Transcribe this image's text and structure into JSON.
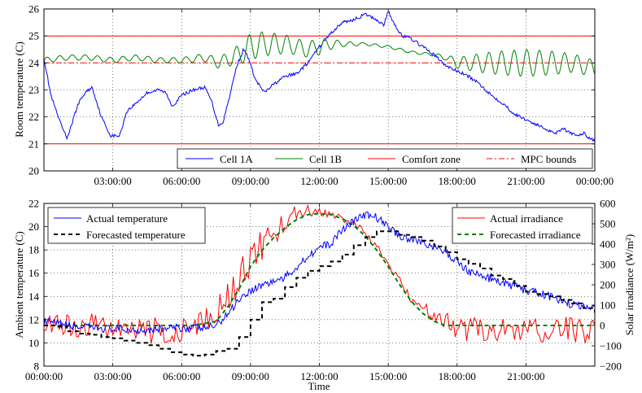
{
  "chart_data": [
    {
      "type": "line",
      "title": "",
      "xlabel": "",
      "ylabel": "Room temperature (C)",
      "xlim": [
        0,
        24
      ],
      "ylim": [
        20,
        26
      ],
      "grid": true,
      "legend_placement": "bottom-right",
      "x_tick_values": [
        3,
        6,
        9,
        12,
        15,
        18,
        21,
        24
      ],
      "x_tick_labels": [
        "03:00:00",
        "06:00:00",
        "09:00:00",
        "12:00:00",
        "15:00:00",
        "18:00:00",
        "21:00:00",
        "00:00:00"
      ],
      "y_tick_values": [
        20,
        21,
        22,
        23,
        24,
        25,
        26
      ],
      "y_tick_labels": [
        "20",
        "21",
        "22",
        "23",
        "24",
        "25",
        "26"
      ],
      "x_units": "hours",
      "series": [
        {
          "name": "Cell 1A",
          "color": "#0000ff",
          "style": "solid",
          "x": [
            0,
            0.3,
            0.7,
            1.0,
            1.2,
            1.5,
            1.8,
            2.1,
            2.5,
            2.9,
            3.3,
            3.6,
            4.0,
            4.5,
            5.0,
            5.3,
            5.6,
            6.0,
            6.5,
            7.0,
            7.3,
            7.6,
            7.8,
            8.1,
            8.4,
            8.7,
            8.9,
            9.2,
            9.6,
            10.0,
            10.5,
            11.0,
            11.5,
            12.0,
            12.5,
            13.0,
            13.5,
            14.0,
            14.5,
            14.8,
            15.0,
            15.3,
            15.6,
            16.0,
            16.5,
            17.0,
            17.5,
            18.0,
            18.5,
            19.0,
            19.5,
            20.0,
            20.5,
            21.0,
            21.5,
            22.0,
            22.3,
            22.6,
            22.9,
            23.2,
            23.5,
            23.8,
            24.0
          ],
          "y": [
            24.2,
            22.8,
            21.8,
            21.2,
            21.7,
            22.5,
            22.9,
            23.1,
            22.0,
            21.3,
            21.3,
            22.2,
            22.5,
            22.9,
            23.0,
            22.9,
            22.4,
            22.8,
            23.0,
            23.1,
            22.6,
            21.7,
            21.8,
            22.8,
            23.9,
            24.5,
            24.2,
            23.4,
            22.9,
            23.2,
            23.5,
            23.6,
            24.0,
            24.6,
            25.1,
            25.5,
            25.6,
            25.8,
            25.6,
            25.4,
            25.9,
            25.4,
            25.0,
            24.9,
            24.6,
            24.3,
            23.9,
            23.7,
            23.5,
            23.2,
            22.8,
            22.5,
            22.1,
            21.9,
            21.7,
            21.5,
            21.4,
            21.6,
            21.4,
            21.3,
            21.4,
            21.2,
            21.1
          ]
        },
        {
          "name": "Cell 1B",
          "color": "#008000",
          "style": "solid",
          "x": [
            0,
            1,
            2,
            3,
            4,
            5,
            6,
            7,
            7.6,
            8.2,
            8.7,
            9.0,
            9.5,
            10.0,
            10.5,
            11.0,
            11.5,
            12.0,
            12.5,
            13.0,
            14.0,
            15.0,
            16.0,
            17.0,
            17.5,
            18.0,
            19.0,
            20.0,
            21.0,
            22.0,
            23.0,
            24.0
          ],
          "y": [
            24.1,
            24.2,
            24.2,
            24.1,
            24.2,
            24.1,
            24.1,
            24.2,
            24.0,
            24.2,
            24.4,
            24.6,
            24.7,
            24.7,
            24.7,
            24.6,
            24.5,
            24.6,
            24.7,
            24.7,
            24.7,
            24.6,
            24.4,
            24.3,
            24.2,
            24.0,
            24.0,
            24.0,
            24.0,
            24.0,
            24.0,
            23.8
          ],
          "oscillation_amplitude": [
            0.1,
            0.1,
            0.1,
            0.1,
            0.1,
            0.1,
            0.1,
            0.15,
            0.2,
            0.3,
            0.4,
            0.5,
            0.45,
            0.4,
            0.35,
            0.3,
            0.3,
            0.3,
            0.2,
            0.1,
            0.05,
            0.05,
            0.05,
            0.05,
            0.1,
            0.2,
            0.35,
            0.45,
            0.5,
            0.45,
            0.35,
            0.3
          ]
        },
        {
          "name": "Comfort zone",
          "color": "#ff0000",
          "style": "solid",
          "x": [
            0,
            24
          ],
          "y": [
            25,
            25
          ],
          "y_lower": [
            21,
            21
          ]
        },
        {
          "name": "MPC bounds",
          "color": "#ff0000",
          "style": "dashdot",
          "x": [
            0,
            24
          ],
          "y": [
            24,
            24
          ]
        }
      ]
    },
    {
      "type": "line",
      "title": "",
      "xlabel": "Time",
      "ylabel": "Ambient temperature (C)",
      "y2label": "Solar irradiance (W/m²)",
      "xlim": [
        0,
        24
      ],
      "ylim": [
        8,
        22
      ],
      "y2lim": [
        -200,
        600
      ],
      "grid": true,
      "legend_placement": "top-left and top-right",
      "x_tick_values": [
        0,
        3,
        6,
        9,
        12,
        15,
        18,
        21
      ],
      "x_tick_labels": [
        "00:00:00",
        "03:00:00",
        "06:00:00",
        "09:00:00",
        "12:00:00",
        "15:00:00",
        "18:00:00",
        "21:00:00"
      ],
      "y_tick_values": [
        8,
        10,
        12,
        14,
        16,
        18,
        20,
        22
      ],
      "y_tick_labels": [
        "8",
        "10",
        "12",
        "14",
        "16",
        "18",
        "20",
        "22"
      ],
      "y2_tick_values": [
        -200,
        -100,
        0,
        100,
        200,
        300,
        400,
        500,
        600
      ],
      "y2_tick_labels": [
        "−200",
        "−100",
        "0",
        "100",
        "200",
        "300",
        "400",
        "500",
        "600"
      ],
      "x_units": "hours",
      "series": [
        {
          "name": "Actual temperature",
          "axis": "left",
          "color": "#0000ff",
          "style": "solid",
          "x": [
            0,
            1,
            2,
            3,
            4,
            5,
            6,
            7,
            7.5,
            8,
            8.5,
            9,
            9.5,
            10,
            10.5,
            11,
            11.5,
            12,
            12.5,
            13,
            13.5,
            14,
            14.5,
            15,
            15.5,
            16,
            16.5,
            17,
            17.5,
            18,
            18.5,
            19,
            19.5,
            20,
            20.5,
            21,
            21.5,
            22,
            22.5,
            23,
            23.5,
            24
          ],
          "y": [
            11.8,
            11.5,
            11.3,
            11.2,
            11.1,
            11.2,
            11.3,
            11.3,
            11.5,
            12.5,
            13.8,
            14.5,
            15.0,
            15.3,
            15.6,
            16.5,
            17.5,
            18.2,
            18.5,
            19.8,
            20.5,
            21.0,
            20.8,
            20.0,
            19.2,
            18.9,
            18.7,
            18.2,
            17.8,
            17.0,
            16.2,
            15.8,
            15.5,
            15.1,
            14.9,
            14.5,
            14.3,
            14.0,
            13.7,
            13.3,
            13.1,
            13.2
          ]
        },
        {
          "name": "Forecasted temperature",
          "axis": "left",
          "color": "#000000",
          "style": "dashed",
          "x": [
            0,
            0.5,
            1,
            1.5,
            2,
            2.5,
            3,
            3.5,
            4,
            4.5,
            5,
            5.5,
            6,
            6.5,
            7,
            7.5,
            8,
            8.5,
            9,
            9.5,
            10,
            10.5,
            11,
            11.5,
            12,
            12.5,
            13,
            13.5,
            14,
            14.5,
            15,
            15.5,
            16,
            16.5,
            17,
            17.5,
            18,
            18.5,
            19,
            19.5,
            20,
            20.5,
            21,
            21.5,
            22,
            22.5,
            23,
            23.5,
            24
          ],
          "y": [
            11.5,
            11.4,
            11.0,
            10.8,
            10.7,
            10.5,
            10.4,
            10.2,
            10.0,
            9.8,
            9.5,
            9.2,
            9.0,
            8.9,
            9.0,
            9.3,
            9.5,
            10.5,
            12.0,
            13.5,
            13.8,
            14.8,
            15.6,
            16.2,
            16.6,
            17.0,
            17.6,
            18.4,
            19.1,
            19.6,
            19.6,
            19.3,
            19.1,
            18.8,
            18.3,
            17.8,
            17.2,
            16.8,
            16.4,
            15.8,
            15.5,
            14.9,
            14.4,
            14.2,
            14.0,
            13.7,
            13.4,
            13.0,
            12.6
          ]
        },
        {
          "name": "Actual irradiance",
          "axis": "right",
          "color": "#ff0000",
          "style": "solid",
          "x": [
            0,
            1,
            2,
            3,
            4,
            5,
            6,
            7,
            7.5,
            8,
            8.5,
            9,
            9.5,
            10,
            10.5,
            11,
            11.5,
            12,
            12.5,
            13,
            13.5,
            14,
            14.5,
            15,
            15.5,
            16,
            16.5,
            17,
            17.5,
            18,
            18.5,
            19,
            20,
            21,
            22,
            23,
            24
          ],
          "y": [
            10,
            0,
            0,
            -10,
            -20,
            -30,
            -20,
            20,
            60,
            130,
            220,
            320,
            400,
            460,
            510,
            550,
            560,
            560,
            550,
            530,
            500,
            450,
            390,
            300,
            220,
            140,
            90,
            50,
            30,
            -20,
            -20,
            -20,
            -20,
            -20,
            -20,
            -30,
            -20
          ],
          "noise_amplitude": [
            40,
            60,
            60,
            60,
            60,
            70,
            60,
            60,
            70,
            80,
            90,
            90,
            80,
            70,
            60,
            40,
            30,
            20,
            20,
            20,
            20,
            20,
            20,
            20,
            20,
            30,
            40,
            40,
            40,
            50,
            60,
            60,
            60,
            60,
            70,
            70,
            60
          ]
        },
        {
          "name": "Forecasted irradiance",
          "axis": "right",
          "color": "#008000",
          "style": "dashed",
          "x": [
            0,
            6.5,
            7.5,
            8,
            8.5,
            9,
            9.5,
            10,
            10.5,
            11,
            11.5,
            12,
            12.5,
            13,
            13.5,
            14,
            14.5,
            15,
            15.5,
            16,
            16.5,
            17,
            17.5,
            24
          ],
          "y": [
            0,
            0,
            20,
            90,
            180,
            290,
            370,
            430,
            480,
            520,
            545,
            550,
            545,
            525,
            490,
            440,
            370,
            290,
            200,
            120,
            60,
            20,
            0,
            0
          ]
        }
      ]
    }
  ]
}
